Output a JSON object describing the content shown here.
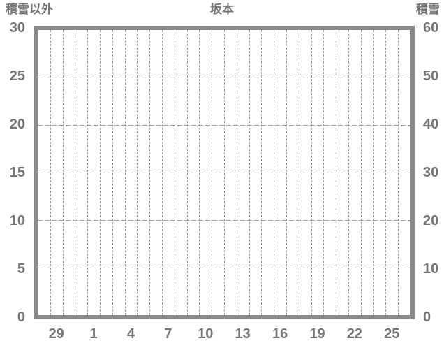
{
  "chart_data": {
    "type": "line",
    "title": "坂本",
    "series": [],
    "left_axis": {
      "label": "積雪以外",
      "min": 0,
      "max": 30,
      "tick_step": 5,
      "ticks": [
        30,
        25,
        20,
        15,
        10,
        5,
        0
      ]
    },
    "right_axis": {
      "label": "積雪",
      "min": 0,
      "max": 60,
      "tick_step": 10,
      "ticks": [
        60,
        50,
        40,
        30,
        20,
        10,
        0
      ]
    },
    "x_axis": {
      "tick_labels": [
        "29",
        "1",
        "4",
        "7",
        "10",
        "13",
        "16",
        "19",
        "22",
        "25"
      ],
      "columns": 30,
      "label_first_column": 1,
      "label_step": 3
    },
    "grid": {
      "line_style": "dashed",
      "vertical": "every-column",
      "horizontal_values": [
        25,
        20,
        15,
        10,
        5
      ]
    },
    "legend": null,
    "colors": {
      "text": "#757575",
      "frame": "#8a8a8a",
      "gridline": "#9e9e9e",
      "background": "#ffffff"
    }
  }
}
